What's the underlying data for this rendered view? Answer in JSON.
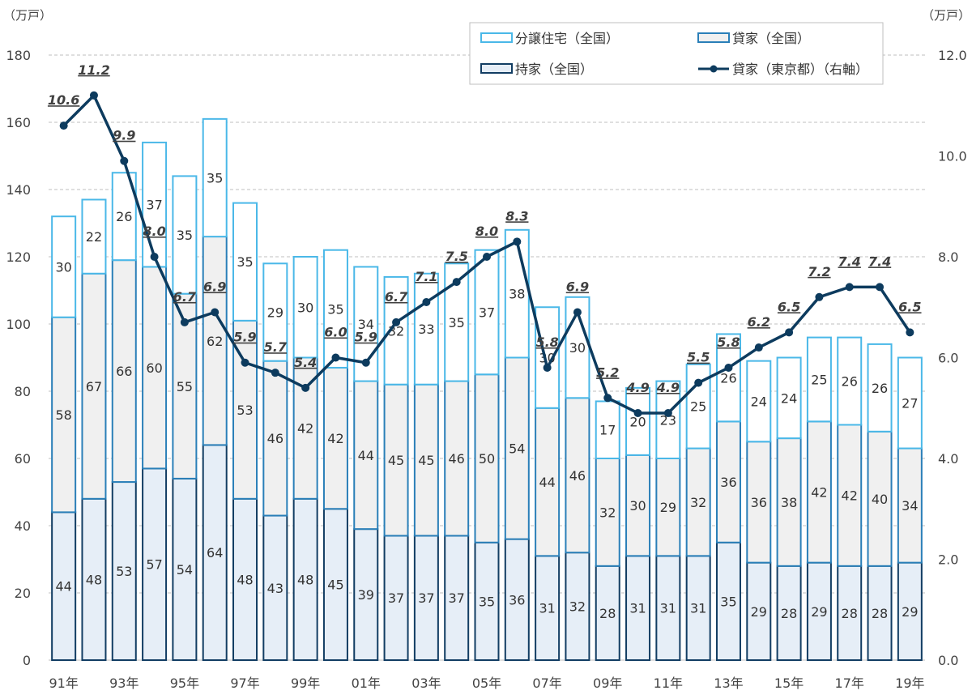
{
  "chart_data": {
    "type": "bar",
    "stacked": true,
    "left_axis_unit": "（万戸）",
    "right_axis_unit": "（万戸）",
    "ylim": [
      0,
      180
    ],
    "y2lim": [
      0,
      12
    ],
    "yticks": [
      0,
      20,
      40,
      60,
      80,
      100,
      120,
      140,
      160,
      180
    ],
    "y2ticks": [
      "0.0",
      "2.0",
      "4.0",
      "6.0",
      "8.0",
      "10.0",
      "12.0"
    ],
    "x_tick_labels": [
      "91年",
      "93年",
      "95年",
      "97年",
      "99年",
      "01年",
      "03年",
      "05年",
      "07年",
      "09年",
      "11年",
      "13年",
      "15年",
      "17年",
      "19年"
    ],
    "grid": "horizontal dashed",
    "legend_position": "top-right",
    "series": [
      {
        "name": "持家（全国）",
        "color": "#e6eef7",
        "edge": "#123d63",
        "values": [
          44,
          48,
          53,
          57,
          54,
          64,
          48,
          43,
          48,
          45,
          39,
          37,
          37,
          37,
          35,
          36,
          31,
          32,
          28,
          31,
          31,
          31,
          35,
          29,
          28,
          29,
          28,
          28,
          29
        ]
      },
      {
        "name": "貸家（全国）",
        "color": "#f0f0f0",
        "edge": "#2a7fb8",
        "values": [
          58,
          67,
          66,
          60,
          55,
          62,
          53,
          46,
          42,
          42,
          44,
          45,
          45,
          46,
          50,
          54,
          44,
          46,
          32,
          30,
          29,
          32,
          36,
          36,
          38,
          42,
          42,
          40,
          34
        ]
      },
      {
        "name": "分譲住宅（全国）",
        "color": "#ffffff",
        "edge": "#4ab8e8",
        "values": [
          30,
          22,
          26,
          37,
          35,
          35,
          35,
          29,
          30,
          35,
          34,
          32,
          33,
          35,
          37,
          38,
          30,
          30,
          17,
          20,
          23,
          25,
          26,
          24,
          24,
          25,
          26,
          26,
          27
        ]
      },
      {
        "name": "貸家（東京都）（右軸）",
        "type": "line",
        "axis": "right",
        "color": "#0d3b5e",
        "values": [
          10.6,
          11.2,
          9.9,
          8.0,
          6.7,
          6.9,
          5.9,
          5.7,
          5.4,
          6.0,
          5.9,
          6.7,
          7.1,
          7.5,
          8.0,
          8.3,
          5.8,
          6.9,
          5.2,
          4.9,
          4.9,
          5.5,
          5.8,
          6.2,
          6.5,
          7.2,
          7.4,
          7.4,
          6.5
        ],
        "labels": [
          "10.6",
          "11.2",
          "9.9",
          "8.0",
          "6.7",
          "6.9",
          "5.9",
          "5.7",
          "5.4",
          "6.0",
          "5.9",
          "6.7",
          "7.1",
          "7.5",
          "8.0",
          "8.3",
          "5.8",
          "6.9",
          "5.2",
          "4.9",
          "4.9",
          "5.5",
          "5.8",
          "6.2",
          "6.5",
          "7.2",
          "7.4",
          "7.4",
          "6.5"
        ]
      }
    ],
    "legend": [
      {
        "label": "分譲住宅（全国）",
        "swatch": "bar3"
      },
      {
        "label": "貸家（全国）",
        "swatch": "bar2"
      },
      {
        "label": "持家（全国）",
        "swatch": "bar1"
      },
      {
        "label": "貸家（東京都）（右軸）",
        "swatch": "line"
      }
    ]
  }
}
